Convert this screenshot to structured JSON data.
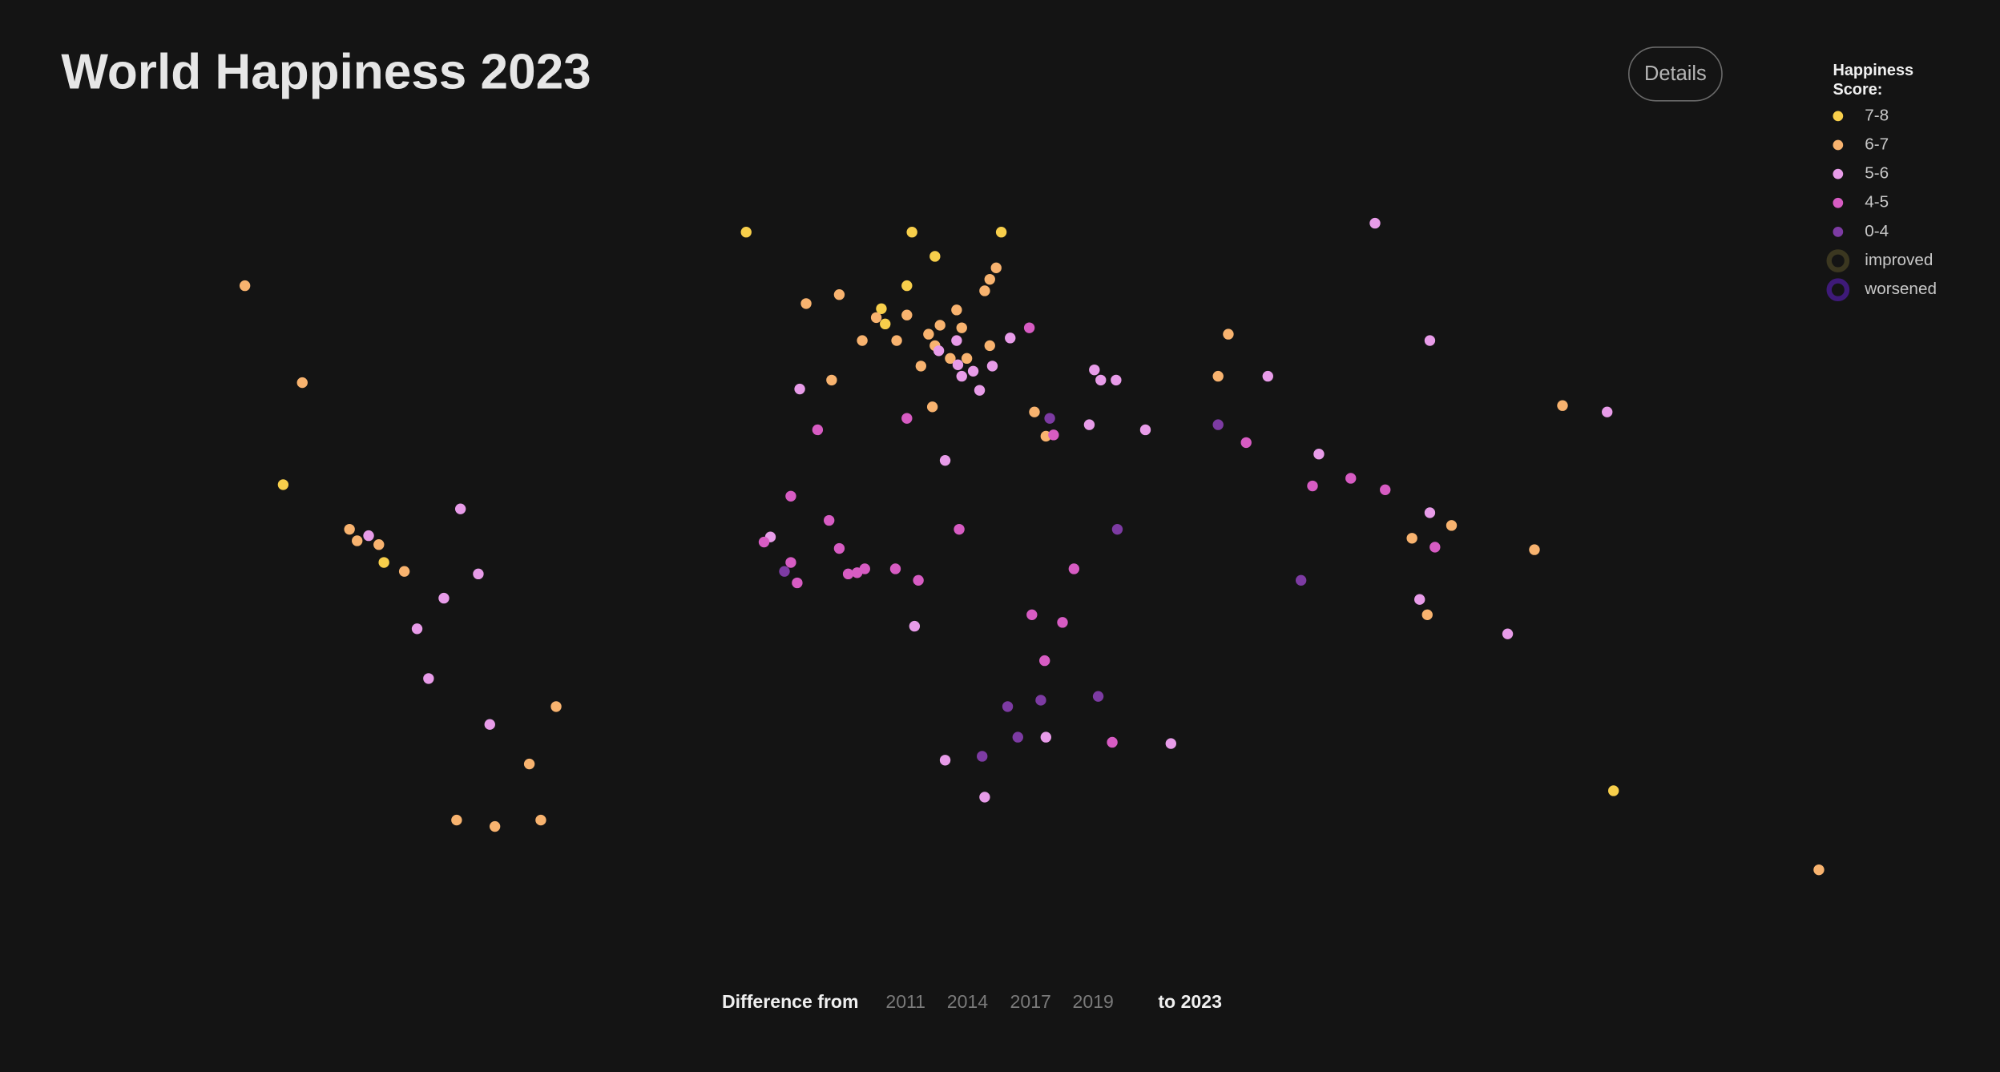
{
  "header": {
    "title": "World Happiness 2023",
    "details_button": "Details"
  },
  "legend": {
    "title": "Happiness Score:",
    "items": [
      {
        "label": "7-8",
        "color": "#f8cf4b"
      },
      {
        "label": "6-7",
        "color": "#f8b36f"
      },
      {
        "label": "5-6",
        "color": "#e89ce9"
      },
      {
        "label": "4-5",
        "color": "#d75cc3"
      },
      {
        "label": "0-4",
        "color": "#7d3ba3"
      }
    ],
    "change": [
      {
        "label": "improved",
        "color": "#3b3720"
      },
      {
        "label": "worsened",
        "color": "#3e1a78"
      }
    ]
  },
  "timeline": {
    "label": "Difference from",
    "years": [
      "2011",
      "2014",
      "2017",
      "2019"
    ],
    "end": "to 2023"
  }
}
